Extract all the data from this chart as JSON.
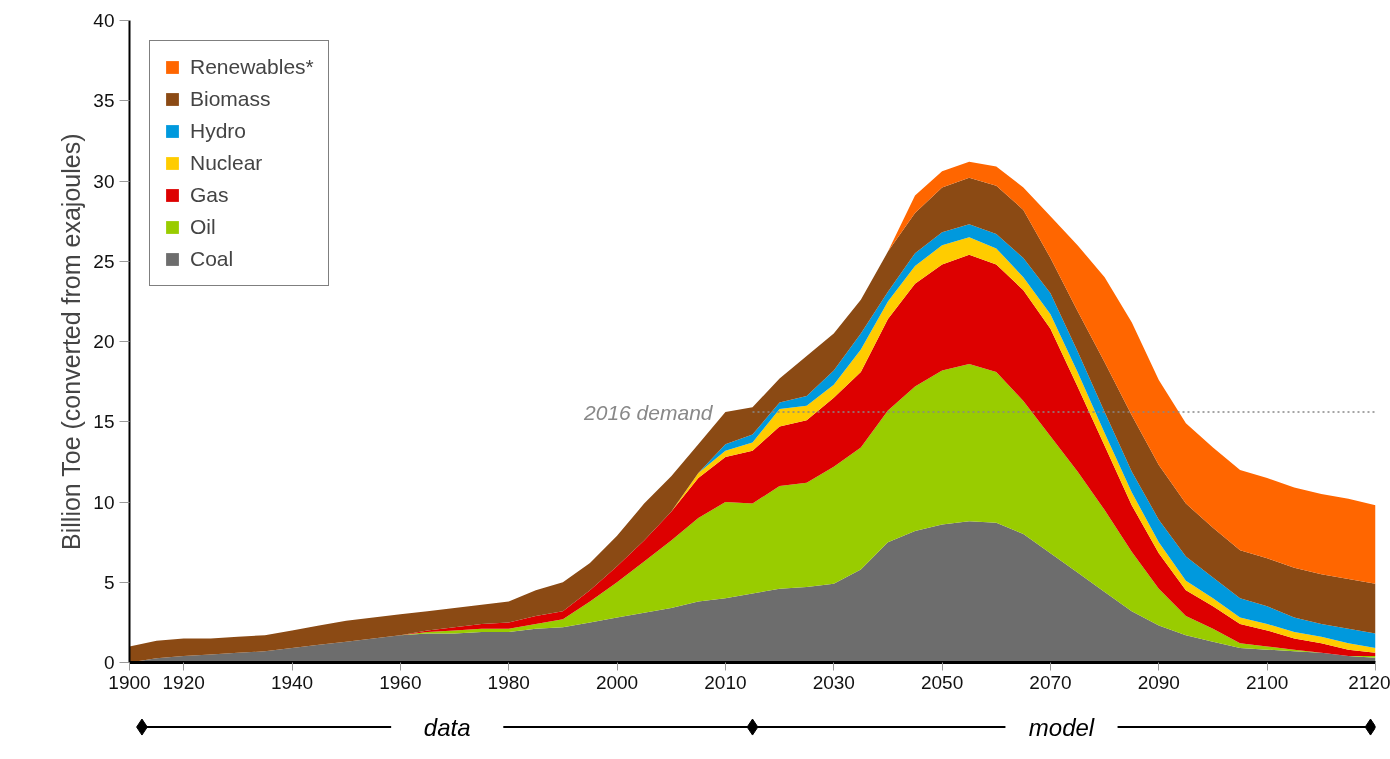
{
  "chart_data": {
    "type": "area",
    "stacked": true,
    "ylabel": "Billion Toe (converted from exajoules)",
    "categories": [
      "1900",
      null,
      "1920",
      null,
      null,
      null,
      "1940",
      null,
      null,
      null,
      "1960",
      null,
      null,
      null,
      "1980",
      null,
      null,
      null,
      "2000",
      null,
      null,
      null,
      "2010",
      null,
      null,
      null,
      "2030",
      null,
      null,
      null,
      "2050",
      null,
      null,
      null,
      "2070",
      null,
      null,
      null,
      "2090",
      null,
      null,
      null,
      "2100",
      null,
      null,
      null,
      "2120"
    ],
    "series": [
      {
        "name": "Coal",
        "color": "#6d6d6d",
        "values": [
          0,
          0.26,
          0.4,
          0.5,
          0.6,
          0.7,
          0.9,
          1.1,
          1.3,
          1.5,
          1.7,
          1.8,
          1.8,
          1.9,
          1.9,
          2.1,
          2.2,
          2.5,
          2.8,
          3.1,
          3.4,
          3.8,
          4.0,
          4.3,
          4.6,
          4.7,
          4.9,
          5.8,
          7.5,
          8.2,
          8.6,
          8.8,
          8.7,
          8.0,
          6.8,
          5.6,
          4.4,
          3.2,
          2.3,
          1.7,
          1.3,
          0.9,
          0.8,
          0.7,
          0.6,
          0.4,
          0.3
        ]
      },
      {
        "name": "Oil",
        "color": "#99cc00",
        "values": [
          0,
          0,
          0,
          0,
          0,
          0,
          0,
          0,
          0,
          0,
          0,
          0.1,
          0.2,
          0.2,
          0.2,
          0.3,
          0.5,
          1.3,
          2.2,
          3.2,
          4.2,
          5.2,
          6.0,
          5.6,
          6.4,
          6.5,
          7.3,
          7.6,
          8.2,
          9.0,
          9.6,
          9.8,
          9.4,
          8.3,
          7.3,
          6.3,
          5.1,
          3.7,
          2.3,
          1.2,
          0.8,
          0.3,
          0.2,
          0.1,
          0,
          0,
          0.1
        ]
      },
      {
        "name": "Gas",
        "color": "#dd0000",
        "values": [
          0,
          0,
          0,
          0,
          0,
          0,
          0,
          0,
          0,
          0,
          0,
          0.1,
          0.2,
          0.3,
          0.4,
          0.5,
          0.5,
          0.7,
          1.0,
          1.3,
          1.8,
          2.5,
          2.8,
          3.3,
          3.7,
          3.9,
          4.3,
          4.7,
          5.7,
          6.4,
          6.6,
          6.8,
          6.7,
          6.9,
          6.7,
          5.3,
          4.0,
          2.9,
          2.2,
          1.6,
          1.4,
          1.2,
          1.0,
          0.7,
          0.6,
          0.4,
          0.2
        ]
      },
      {
        "name": "Nuclear",
        "color": "#ffcc00",
        "values": [
          0,
          0,
          0,
          0,
          0,
          0,
          0,
          0,
          0,
          0,
          0,
          0,
          0,
          0,
          0,
          0,
          0,
          0,
          0,
          0,
          0,
          0.3,
          0.4,
          0.5,
          1.1,
          0.9,
          0.8,
          1.4,
          1.1,
          1.1,
          1.2,
          1.1,
          1.0,
          0.8,
          0.9,
          0.9,
          0.8,
          0.8,
          0.7,
          0.6,
          0.5,
          0.4,
          0.4,
          0.4,
          0.4,
          0.4,
          0.3
        ]
      },
      {
        "name": "Hydro",
        "color": "#0099dd",
        "values": [
          0,
          0,
          0,
          0,
          0,
          0,
          0,
          0,
          0,
          0,
          0,
          0,
          0,
          0,
          0,
          0,
          0,
          0,
          0,
          0,
          0,
          0,
          0.4,
          0.5,
          0.4,
          0.6,
          0.9,
          1.0,
          0.6,
          0.8,
          0.8,
          0.8,
          0.9,
          1.2,
          1.3,
          1.3,
          1.3,
          1.3,
          1.4,
          1.5,
          1.3,
          1.2,
          1.1,
          0.9,
          0.8,
          0.9,
          0.9
        ]
      },
      {
        "name": "Biomass",
        "color": "#8b4a14",
        "values": [
          1.0,
          1.1,
          1.1,
          1.0,
          1.0,
          1.0,
          1.1,
          1.2,
          1.3,
          1.3,
          1.3,
          1.2,
          1.2,
          1.2,
          1.3,
          1.6,
          1.8,
          1.7,
          1.9,
          2.3,
          2.2,
          1.8,
          2.0,
          1.7,
          1.5,
          2.5,
          2.3,
          2.1,
          2.5,
          2.5,
          2.8,
          2.9,
          3.0,
          3.0,
          2.2,
          2.5,
          3.1,
          3.5,
          3.4,
          3.3,
          3.1,
          3.0,
          3.0,
          3.1,
          3.1,
          3.1,
          3.1
        ]
      },
      {
        "name": "Renewables*",
        "color": "#ff6600",
        "values": [
          0,
          0,
          0,
          0,
          0,
          0,
          0,
          0,
          0,
          0,
          0,
          0,
          0,
          0,
          0,
          0,
          0,
          0,
          0,
          0,
          0,
          0,
          0,
          0,
          0,
          0,
          0,
          0,
          0,
          1.1,
          1.0,
          1.0,
          1.2,
          1.4,
          2.6,
          4.1,
          5.3,
          5.8,
          5.3,
          5.0,
          5.0,
          5.0,
          5.0,
          5.0,
          5.0,
          5.0,
          4.9
        ]
      }
    ],
    "ylim": [
      0,
      40
    ],
    "yticks": [
      0,
      5,
      10,
      15,
      20,
      25,
      30,
      35,
      40
    ],
    "ref_lines": [
      {
        "axis": "y",
        "value": 15.6,
        "label": "2016 demand",
        "color": "#888888",
        "line_style": "dotted"
      }
    ],
    "annotations": [
      "data",
      "model"
    ],
    "legend": "top left",
    "grid": false
  }
}
